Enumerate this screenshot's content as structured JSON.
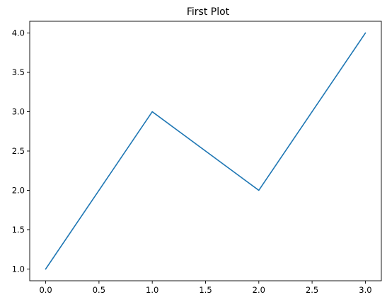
{
  "chart_data": {
    "type": "line",
    "title": "First Plot",
    "xlabel": "",
    "ylabel": "",
    "x": [
      0,
      1,
      2,
      3
    ],
    "series": [
      {
        "values": [
          1,
          3,
          2,
          4
        ],
        "color": "#1f77b4"
      }
    ],
    "xlim": [
      -0.15,
      3.15
    ],
    "ylim": [
      0.85,
      4.15
    ],
    "xticks": [
      0.0,
      0.5,
      1.0,
      1.5,
      2.0,
      2.5,
      3.0
    ],
    "yticks": [
      1.0,
      1.5,
      2.0,
      2.5,
      3.0,
      3.5,
      4.0
    ],
    "xtick_labels": [
      "0.0",
      "0.5",
      "1.0",
      "1.5",
      "2.0",
      "2.5",
      "3.0"
    ],
    "ytick_labels": [
      "1.0",
      "1.5",
      "2.0",
      "2.5",
      "3.0",
      "3.5",
      "4.0"
    ],
    "grid": false,
    "legend": false
  }
}
